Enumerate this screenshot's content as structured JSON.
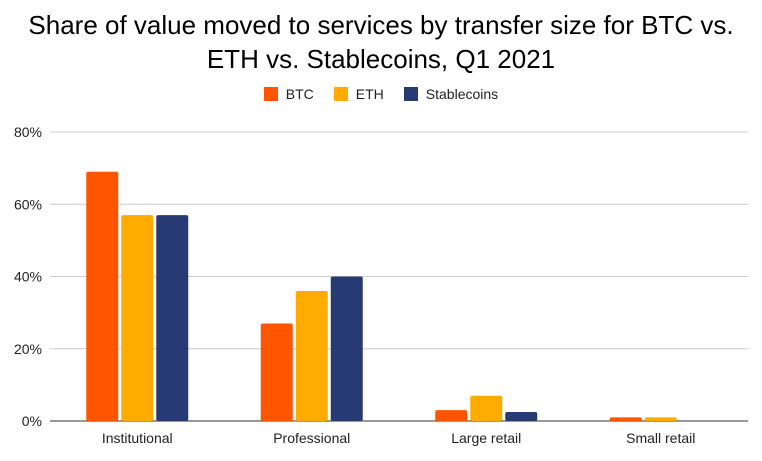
{
  "chart_data": {
    "type": "bar",
    "title_lines": [
      "Share of value moved to services by transfer size for BTC vs.",
      "ETH vs. Stablecoins, Q1 2021"
    ],
    "categories": [
      "Institutional",
      "Professional",
      "Large retail",
      "Small retail"
    ],
    "series": [
      {
        "name": "BTC",
        "color": "#ff5500",
        "values": [
          69,
          27,
          3,
          1
        ]
      },
      {
        "name": "ETH",
        "color": "#ffab00",
        "values": [
          57,
          36,
          7,
          1
        ]
      },
      {
        "name": "Stablecoins",
        "color": "#283a74",
        "values": [
          57,
          40,
          2.5,
          0
        ]
      }
    ],
    "yticks": [
      "0%",
      "20%",
      "40%",
      "60%",
      "80%"
    ],
    "ylim": [
      0,
      80
    ],
    "grid": true,
    "legend_position": "top"
  }
}
